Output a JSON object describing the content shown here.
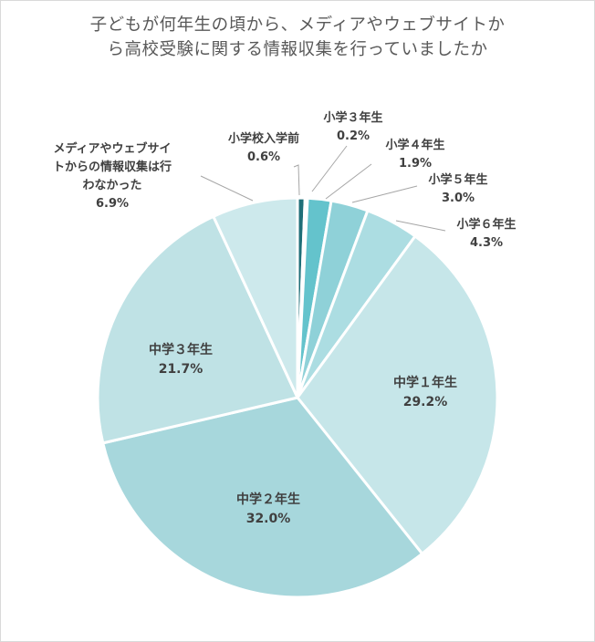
{
  "chart_data": {
    "type": "pie",
    "title_lines": [
      "子どもが何年生の頃から、メディアやウェブサイトか",
      "ら高校受験に関する情報収集を行っていましたか"
    ],
    "slices": [
      {
        "name": "小学校入学前",
        "name_lines": [
          "小学校入学前"
        ],
        "value": 0.6,
        "value_label": "0.6%",
        "color": "#1f6f78"
      },
      {
        "name": "小学３年生",
        "name_lines": [
          "小学３年生"
        ],
        "value": 0.2,
        "value_label": "0.2%",
        "color": "#3aa9b4"
      },
      {
        "name": "小学４年生",
        "name_lines": [
          "小学４年生"
        ],
        "value": 1.9,
        "value_label": "1.9%",
        "color": "#64c3cc"
      },
      {
        "name": "小学５年生",
        "name_lines": [
          "小学５年生"
        ],
        "value": 3.0,
        "value_label": "3.0%",
        "color": "#8fd1d8"
      },
      {
        "name": "小学６年生",
        "name_lines": [
          "小学６年生"
        ],
        "value": 4.3,
        "value_label": "4.3%",
        "color": "#acdde2"
      },
      {
        "name": "中学１年生",
        "name_lines": [
          "中学１年生"
        ],
        "value": 29.2,
        "value_label": "29.2%",
        "color": "#c6e6e9"
      },
      {
        "name": "中学２年生",
        "name_lines": [
          "中学２年生"
        ],
        "value": 32.0,
        "value_label": "32.0%",
        "color": "#a7d7dc"
      },
      {
        "name": "中学３年生",
        "name_lines": [
          "中学３年生"
        ],
        "value": 21.7,
        "value_label": "21.7%",
        "color": "#bfe2e5"
      },
      {
        "name": "メディアやウェブサイトからの情報収集は行わなかった",
        "name_lines": [
          "メディアやウェブサイ",
          "トからの情報収集は行",
          "わなかった"
        ],
        "value": 6.9,
        "value_label": "6.9%",
        "color": "#cde9ec"
      }
    ],
    "start_angle_deg": 0,
    "direction": "clockwise",
    "legend": "none"
  }
}
